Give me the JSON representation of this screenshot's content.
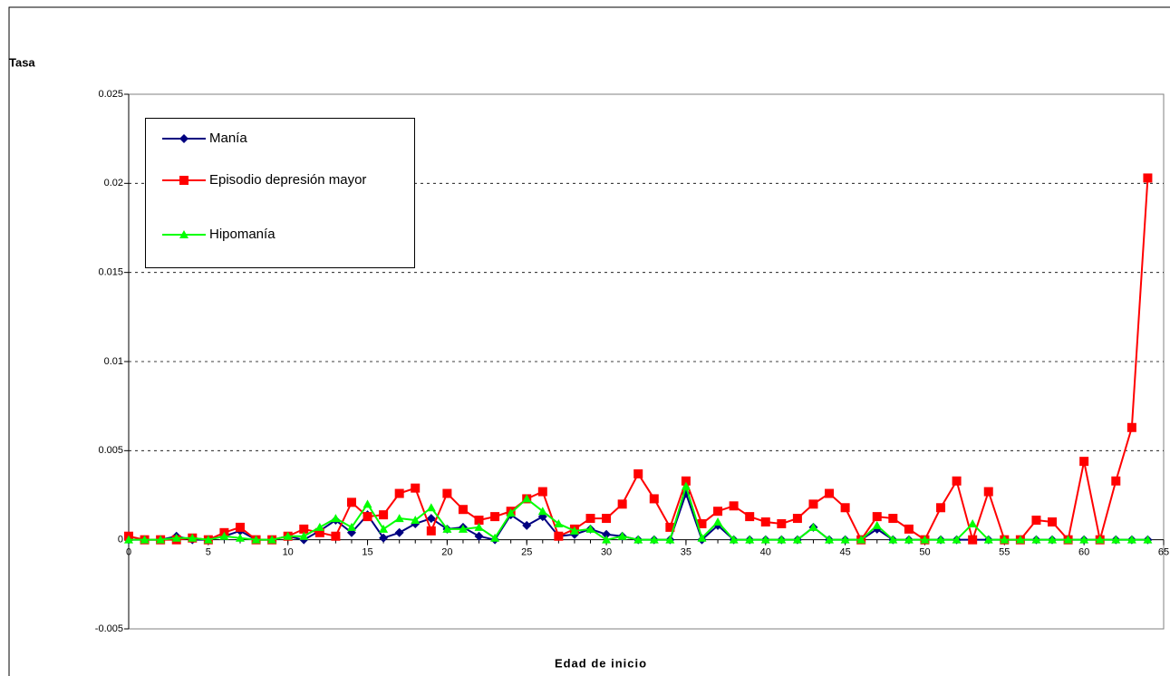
{
  "chart_data": {
    "type": "line",
    "y_label": "Tasa",
    "x_label": "Edad de inicio",
    "x": [
      0,
      1,
      2,
      3,
      4,
      5,
      6,
      7,
      8,
      9,
      10,
      11,
      12,
      13,
      14,
      15,
      16,
      17,
      18,
      19,
      20,
      21,
      22,
      23,
      24,
      25,
      26,
      27,
      28,
      29,
      30,
      31,
      32,
      33,
      34,
      35,
      36,
      37,
      38,
      39,
      40,
      41,
      42,
      43,
      44,
      45,
      46,
      47,
      48,
      49,
      50,
      51,
      52,
      53,
      54,
      55,
      56,
      57,
      58,
      59,
      60,
      61,
      62,
      63,
      64
    ],
    "series": [
      {
        "name": "Manía",
        "color": "#000080",
        "marker": "diamond",
        "values": [
          0,
          0,
          0,
          0.0002,
          0,
          0,
          0.0002,
          0.0005,
          0,
          0,
          0.0002,
          0,
          0.0005,
          0.0011,
          0.0004,
          0.0014,
          0.0001,
          0.0004,
          0.0009,
          0.0012,
          0.0006,
          0.0007,
          0.0002,
          0,
          0.0014,
          0.0008,
          0.0013,
          0.0002,
          0.0003,
          0.0006,
          0.0003,
          0.0002,
          0,
          0,
          0,
          0.0026,
          0,
          0.0008,
          0,
          0,
          0,
          0,
          0,
          0.0007,
          0,
          0,
          0,
          0.0006,
          0,
          0,
          0,
          0,
          0,
          0,
          0,
          0,
          0,
          0,
          0,
          0,
          0,
          0,
          0,
          0,
          0
        ]
      },
      {
        "name": "Episodio depresión mayor",
        "color": "#ff0000",
        "marker": "square",
        "values": [
          0.0002,
          0,
          0,
          0,
          0.0001,
          0,
          0.0004,
          0.0007,
          0,
          0,
          0.0002,
          0.0006,
          0.0004,
          0.0002,
          0.0021,
          0.0013,
          0.0014,
          0.0026,
          0.0029,
          0.0005,
          0.0026,
          0.0017,
          0.0011,
          0.0013,
          0.0016,
          0.0023,
          0.0027,
          0.0002,
          0.0006,
          0.0012,
          0.0012,
          0.002,
          0.0037,
          0.0023,
          0.0007,
          0.0033,
          0.0009,
          0.0016,
          0.0019,
          0.0013,
          0.001,
          0.0009,
          0.0012,
          0.002,
          0.0026,
          0.0018,
          0,
          0.0013,
          0.0012,
          0.0006,
          0,
          0.0018,
          0.0033,
          0,
          0.0027,
          0,
          0,
          0.0011,
          0.001,
          0,
          0.0044,
          0,
          0.0033,
          0.0063,
          0.0203
        ]
      },
      {
        "name": "Hipomanía",
        "color": "#00ff00",
        "marker": "triangle",
        "values": [
          0,
          0,
          0,
          0.0001,
          0.0001,
          0,
          0.0002,
          0.0001,
          0,
          0,
          0.0002,
          0.0002,
          0.0007,
          0.0012,
          0.0007,
          0.002,
          0.0006,
          0.0012,
          0.0011,
          0.0018,
          0.0006,
          0.0006,
          0.0007,
          0.0001,
          0.0015,
          0.0023,
          0.0016,
          0.0009,
          0.0005,
          0.0006,
          0,
          0.0002,
          0,
          0,
          0,
          0.003,
          0.0001,
          0.001,
          0,
          0,
          0,
          0,
          0,
          0.0007,
          0,
          0,
          0,
          0.0008,
          0,
          0,
          0,
          0,
          0,
          0.0009,
          0,
          0,
          0,
          0,
          0,
          0,
          0,
          0,
          0,
          0,
          0
        ]
      }
    ],
    "xlim": [
      0,
      65
    ],
    "xticks": [
      0,
      5,
      10,
      15,
      20,
      25,
      30,
      35,
      40,
      45,
      50,
      55,
      60,
      65
    ],
    "ylim": [
      -0.005,
      0.025
    ],
    "yticks": [
      -0.005,
      0,
      0.005,
      0.01,
      0.015,
      0.02,
      0.025
    ],
    "grid": true,
    "legend": "upper left"
  }
}
